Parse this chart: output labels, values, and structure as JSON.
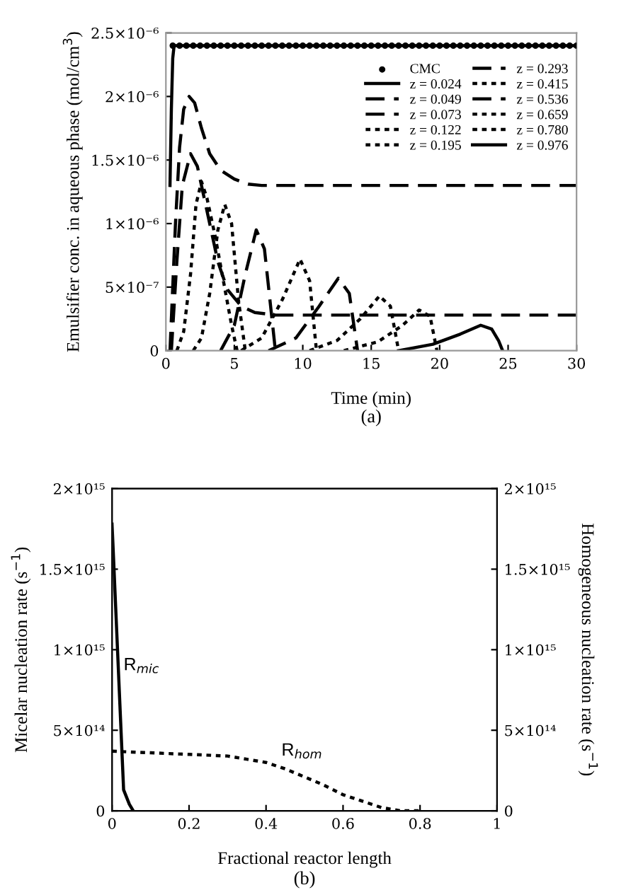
{
  "chart_data": [
    {
      "type": "line",
      "xlabel": "Time (min)",
      "ylabel": "Emulsifier conc. in aqueous phase (mol/cm$^{3}$)",
      "xlim": [
        0,
        30
      ],
      "xticks": [
        0,
        5,
        10,
        15,
        20,
        25,
        30
      ],
      "ylim": [
        0,
        2.5e-06
      ],
      "yticks": [
        0,
        {
          "value": 5e-07,
          "label": "5×10⁻⁷"
        },
        {
          "value": 1e-06,
          "label": "1×10⁻⁶"
        },
        {
          "value": 1.5e-06,
          "label": "1.5×10⁻⁶"
        },
        {
          "value": 2e-06,
          "label": "2×10⁻⁶"
        },
        {
          "value": 2.5e-06,
          "label": "2.5×10⁻⁶"
        }
      ],
      "legend": "top right",
      "grid": false,
      "annotations": [
        "(a)"
      ],
      "series": [
        {
          "name": "CMC",
          "type": "scatter",
          "marker": "circle",
          "color": "#000000",
          "x": [
            0.5,
            1,
            1.5,
            2,
            2.5,
            3,
            3.5,
            4,
            4.5,
            5,
            5.5,
            6,
            6.5,
            7,
            7.5,
            8,
            8.5,
            9,
            9.5,
            10,
            10.5,
            11,
            11.5,
            12,
            12.5,
            13,
            13.5,
            14,
            14.5,
            15,
            15.5,
            16,
            16.5,
            17,
            17.5,
            18,
            18.5,
            19,
            19.5,
            20,
            20.5,
            21,
            21.5,
            22,
            22.5,
            23,
            23.5,
            24,
            24.5,
            25,
            25.5,
            26,
            26.5,
            27,
            27.5,
            28,
            28.5,
            29,
            29.5,
            30
          ],
          "values": [
            2.4e-06,
            2.4e-06,
            2.4e-06,
            2.4e-06,
            2.4e-06,
            2.4e-06,
            2.4e-06,
            2.4e-06,
            2.4e-06,
            2.4e-06,
            2.4e-06,
            2.4e-06,
            2.4e-06,
            2.4e-06,
            2.4e-06,
            2.4e-06,
            2.4e-06,
            2.4e-06,
            2.4e-06,
            2.4e-06,
            2.4e-06,
            2.4e-06,
            2.4e-06,
            2.4e-06,
            2.4e-06,
            2.4e-06,
            2.4e-06,
            2.4e-06,
            2.4e-06,
            2.4e-06,
            2.4e-06,
            2.4e-06,
            2.4e-06,
            2.4e-06,
            2.4e-06,
            2.4e-06,
            2.4e-06,
            2.4e-06,
            2.4e-06,
            2.4e-06,
            2.4e-06,
            2.4e-06,
            2.4e-06,
            2.4e-06,
            2.4e-06,
            2.4e-06,
            2.4e-06,
            2.4e-06,
            2.4e-06,
            2.4e-06,
            2.4e-06,
            2.4e-06,
            2.4e-06,
            2.4e-06,
            2.4e-06,
            2.4e-06,
            2.4e-06,
            2.4e-06,
            2.4e-06,
            2.4e-06
          ]
        },
        {
          "name": "z = 0.024",
          "line_style": "solid",
          "color": "#000000",
          "x": [
            0.3,
            0.4,
            0.5,
            0.6,
            30
          ],
          "values": [
            1.3e-06,
            1.9e-06,
            2.3e-06,
            2.4e-06,
            2.4e-06
          ]
        },
        {
          "name": "z = 0.049",
          "line_style": "dashed",
          "color": "#000000",
          "x": [
            0.3,
            0.7,
            1.0,
            1.3,
            1.7,
            2.1,
            2.6,
            3.2,
            4,
            5,
            6,
            7,
            30
          ],
          "values": [
            0,
            1e-06,
            1.6e-06,
            1.9e-06,
            2e-06,
            1.95e-06,
            1.75e-06,
            1.55e-06,
            1.42e-06,
            1.35e-06,
            1.31e-06,
            1.3e-06,
            1.3e-06
          ]
        },
        {
          "name": "z = 0.073",
          "line_style": "dashed",
          "color": "#000000",
          "x": [
            0.4,
            0.8,
            1.2,
            1.8,
            2.3,
            3,
            3.8,
            4.5,
            5.5,
            6.5,
            8,
            30
          ],
          "values": [
            0,
            7e-07,
            1.3e-06,
            1.55e-06,
            1.45e-06,
            1.1e-06,
            7e-07,
            4.8e-07,
            3.5e-07,
            3e-07,
            2.8e-07,
            2.8e-07
          ]
        },
        {
          "name": "z = 0.122",
          "line_style": "dotted",
          "color": "#000000",
          "x": [
            0.8,
            1.3,
            1.8,
            2.2,
            2.6,
            3.0,
            3.6,
            4.2,
            4.8,
            5.2
          ],
          "values": [
            0,
            1.5e-07,
            6e-07,
            1.15e-06,
            1.33e-06,
            1.2e-06,
            9e-07,
            5.5e-07,
            2e-07,
            0
          ]
        },
        {
          "name": "z = 0.195",
          "line_style": "dotted",
          "color": "#000000",
          "x": [
            2.0,
            2.6,
            3.2,
            3.8,
            4.3,
            4.8,
            5.3,
            5.8
          ],
          "values": [
            0,
            1e-07,
            4.5e-07,
            9.5e-07,
            1.15e-06,
            1e-06,
            4e-07,
            0
          ]
        },
        {
          "name": "z = 0.293",
          "line_style": "dashed",
          "color": "#000000",
          "x": [
            4.0,
            5.0,
            5.8,
            6.6,
            7.2,
            7.7,
            8.0
          ],
          "values": [
            0,
            2e-07,
            6e-07,
            9.5e-07,
            8e-07,
            3e-07,
            0
          ]
        },
        {
          "name": "z = 0.415",
          "line_style": "dotted",
          "color": "#000000",
          "x": [
            5.5,
            7,
            8.5,
            9.8,
            10.5,
            11.0
          ],
          "values": [
            0,
            1e-07,
            4e-07,
            7.2e-07,
            5.5e-07,
            0
          ]
        },
        {
          "name": "z = 0.536",
          "line_style": "dashed",
          "color": "#000000",
          "x": [
            7.5,
            9.5,
            11.2,
            12.6,
            13.4,
            14.0
          ],
          "values": [
            0,
            1e-07,
            3.5e-07,
            5.7e-07,
            4.5e-07,
            0
          ]
        },
        {
          "name": "z = 0.659",
          "line_style": "dotted",
          "color": "#000000",
          "x": [
            10.5,
            12.5,
            14.2,
            15.6,
            16.4,
            17.0
          ],
          "values": [
            0,
            8e-08,
            2.5e-07,
            4.3e-07,
            3.5e-07,
            0
          ]
        },
        {
          "name": "z = 0.780",
          "line_style": "dotted",
          "color": "#000000",
          "x": [
            13,
            15.5,
            17.3,
            18.5,
            19.3,
            19.8
          ],
          "values": [
            0,
            7e-08,
            2e-07,
            3.2e-07,
            2.7e-07,
            0
          ]
        },
        {
          "name": "z = 0.976",
          "line_style": "solid",
          "color": "#000000",
          "x": [
            17,
            19.5,
            21.5,
            23,
            23.8,
            24.3,
            24.6
          ],
          "values": [
            0,
            5e-08,
            1.3e-07,
            2e-07,
            1.7e-07,
            8e-08,
            0
          ]
        }
      ]
    },
    {
      "type": "line",
      "xlabel": "Fractional reactor length",
      "ylabel": "Micelar nucleation rate (s$^{−1}$)",
      "y2label": "Homogeneous nucleation rate (s$^{−1}$)",
      "xlim": [
        0,
        1
      ],
      "xticks": [
        0,
        0.2,
        0.4,
        0.6,
        0.8,
        1
      ],
      "ylim": [
        0,
        2000000000000000.0
      ],
      "yticks": [
        0,
        {
          "value": 500000000000000.0,
          "label": "5×10¹⁴"
        },
        {
          "value": 1000000000000000.0,
          "label": "1×10¹⁵"
        },
        {
          "value": 1500000000000000.0,
          "label": "1.5×10¹⁵"
        },
        {
          "value": 2000000000000000.0,
          "label": "2×10¹⁵"
        }
      ],
      "y2lim": [
        0,
        2000000000000000.0
      ],
      "y2ticks": [
        0,
        {
          "value": 500000000000000.0,
          "label": "5×10¹⁴"
        },
        {
          "value": 1000000000000000.0,
          "label": "1×10¹⁵"
        },
        {
          "value": 1500000000000000.0,
          "label": "1.5×10¹⁵"
        },
        {
          "value": 2000000000000000.0,
          "label": "2×10¹⁵"
        }
      ],
      "grid": false,
      "annotations": [
        {
          "text": "R$_{mic}$",
          "x": 0.03,
          "y": 850000000000000.0
        },
        {
          "text": "R$_{hom}$",
          "x": 0.44,
          "y": 320000000000000.0
        },
        "(b)"
      ],
      "series": [
        {
          "line_style": "solid",
          "color": "#000000",
          "x": [
            0,
            0.03,
            0.045,
            0.055
          ],
          "values": [
            1780000000000000.0,
            130000000000000.0,
            40000000000000.0,
            0
          ]
        },
        {
          "line_style": "dotted",
          "axis": "y2",
          "color": "#000000",
          "x": [
            0,
            0.1,
            0.2,
            0.3,
            0.35,
            0.4,
            0.45,
            0.5,
            0.55,
            0.6,
            0.65,
            0.7,
            0.75,
            0.8
          ],
          "values": [
            370000000000000.0,
            360000000000000.0,
            350000000000000.0,
            340000000000000.0,
            320000000000000.0,
            300000000000000.0,
            260000000000000.0,
            210000000000000.0,
            160000000000000.0,
            100000000000000.0,
            60000000000000.0,
            20000000000000.0,
            0,
            0
          ]
        }
      ]
    }
  ]
}
